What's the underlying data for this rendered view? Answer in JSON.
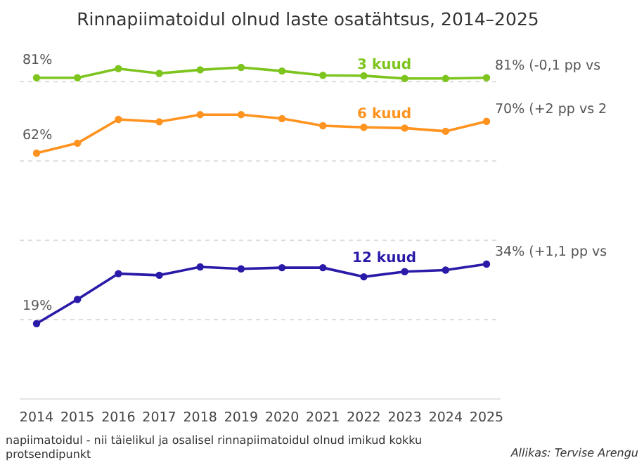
{
  "chart_data": {
    "type": "line",
    "title": "Rinnapiimatoidul olnud laste osatähtsus, 2014–2025",
    "categories": [
      "2014",
      "2015",
      "2016",
      "2017",
      "2018",
      "2019",
      "2020",
      "2021",
      "2022",
      "2023",
      "2024",
      "2025"
    ],
    "yticks": [
      {
        "value": 20,
        "label": null
      },
      {
        "value": 40,
        "label": null
      },
      {
        "value": 60,
        "label": null
      },
      {
        "value": 80,
        "label": null
      }
    ],
    "grid": "y",
    "marker": "circle",
    "line_style": "solid",
    "tick_labels": "x",
    "series": [
      {
        "name": "3 kuud",
        "color": "#7dc41f",
        "values": [
          81,
          81,
          83.3,
          82.1,
          83,
          83.6,
          82.7,
          81.6,
          81.5,
          80.8,
          80.8,
          81
        ],
        "value_labels": [
          "81%",
          null,
          null,
          null,
          null,
          null,
          null,
          null,
          null,
          null,
          null,
          "81% (-0,1 pp vs"
        ]
      },
      {
        "name": "6 kuud",
        "color": "#ff9320",
        "values": [
          62,
          64.5,
          70.5,
          69.9,
          71.7,
          71.7,
          70.7,
          68.9,
          68.5,
          68.3,
          67.5,
          70
        ],
        "value_labels": [
          "62%",
          null,
          null,
          null,
          null,
          null,
          null,
          null,
          null,
          null,
          null,
          "70% (+2 pp vs 2"
        ]
      },
      {
        "name": "12 kuud",
        "color": "#2a1aa8",
        "values": [
          19,
          25.1,
          31.6,
          31.2,
          33.3,
          32.8,
          33.1,
          33.1,
          30.8,
          32.1,
          32.5,
          34
        ],
        "value_labels": [
          "19%",
          null,
          null,
          null,
          null,
          null,
          null,
          null,
          null,
          null,
          null,
          "34% (+1,1 pp vs"
        ]
      }
    ],
    "annotations": [
      "napiimatoidul - nii täielikul ja osalisel rinnapiimatoidul olnud imikud kokku",
      "protsendipunkt",
      "Allikas: Tervise Arengu"
    ]
  }
}
